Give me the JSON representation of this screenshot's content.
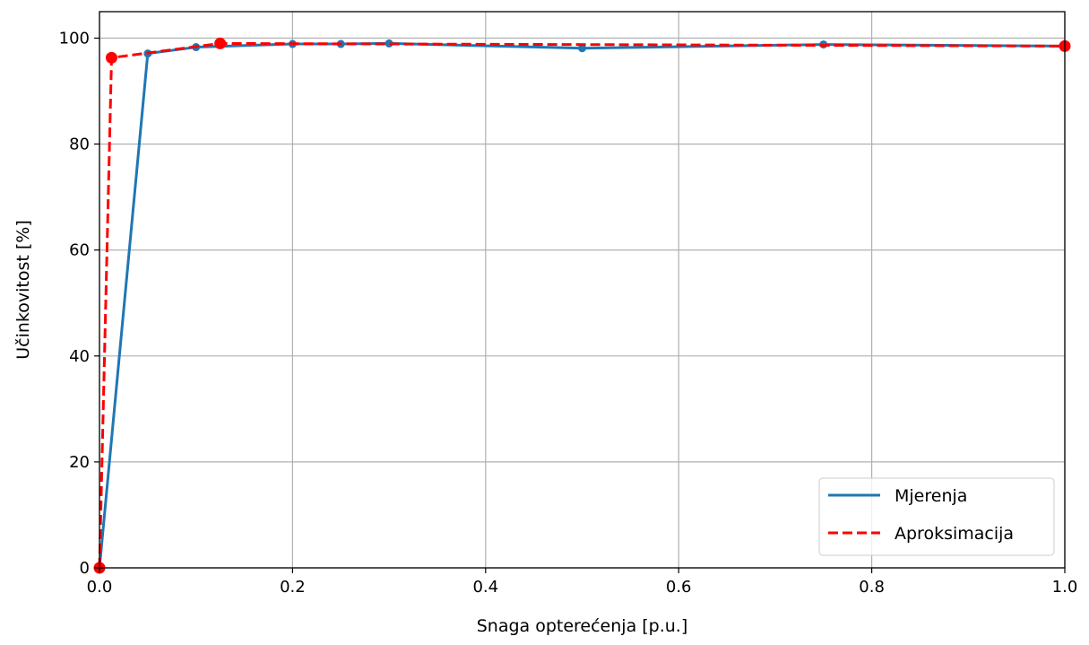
{
  "chart_data": {
    "type": "line",
    "title": "",
    "xlabel": "Snaga opterećenja [p.u.]",
    "ylabel": "Učinkovitost [%]",
    "xlim": [
      0.0,
      1.0
    ],
    "ylim": [
      0,
      105
    ],
    "xticks": [
      0.0,
      0.2,
      0.4,
      0.6,
      0.8,
      1.0
    ],
    "xtick_labels": [
      "0.0",
      "0.2",
      "0.4",
      "0.6",
      "0.8",
      "1.0"
    ],
    "yticks": [
      0,
      20,
      40,
      60,
      80,
      100
    ],
    "ytick_labels": [
      "0",
      "20",
      "40",
      "60",
      "80",
      "100"
    ],
    "grid": true,
    "legend_position": "bottom-right",
    "series": [
      {
        "name": "Mjerenja",
        "color": "#1f77b4",
        "style": "solid",
        "marker_size": "small",
        "x": [
          0.0,
          0.05,
          0.1,
          0.2,
          0.25,
          0.3,
          0.5,
          0.75,
          1.0
        ],
        "y": [
          0.0,
          97.1,
          98.3,
          98.9,
          98.9,
          99.0,
          98.1,
          98.8,
          98.5
        ]
      },
      {
        "name": "Aproksimacija",
        "color": "#ff0000",
        "style": "dashed",
        "marker_size": "large",
        "x": [
          0.0,
          0.0125,
          0.125,
          1.0
        ],
        "y": [
          0.0,
          96.3,
          99.0,
          98.5
        ]
      }
    ]
  }
}
